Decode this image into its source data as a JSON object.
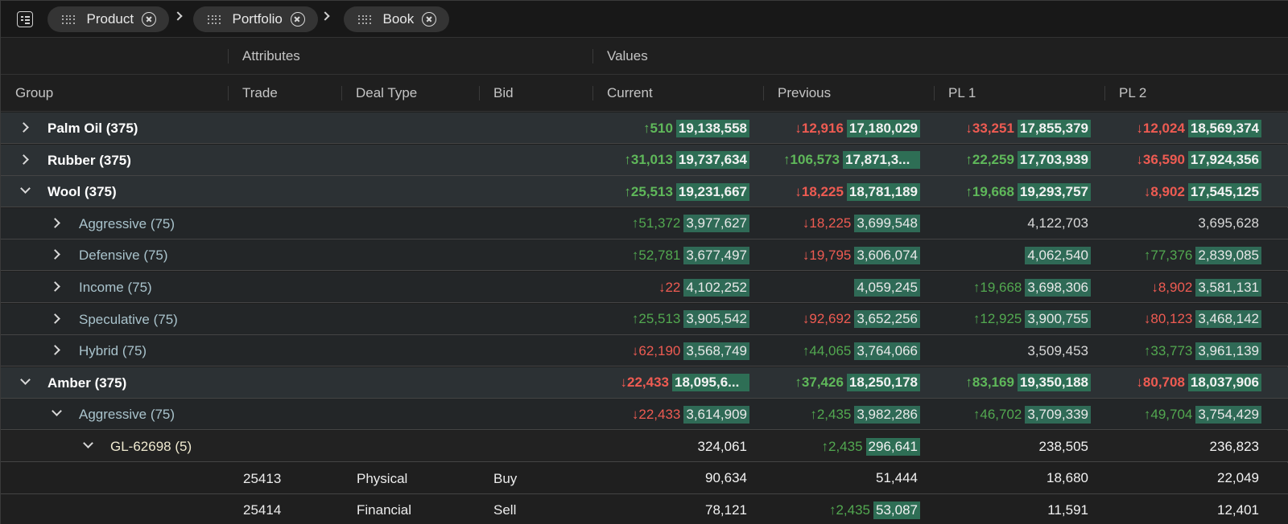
{
  "toolbar": {
    "menu_icon": "grid-menu-icon",
    "pills": [
      {
        "label": "Product"
      },
      {
        "label": "Portfolio"
      },
      {
        "label": "Book"
      }
    ]
  },
  "header": {
    "group_top": "",
    "attributes_label": "Attributes",
    "values_label": "Values",
    "columns": {
      "group": "Group",
      "trade": "Trade",
      "deal_type": "Deal Type",
      "bid": "Bid",
      "current": "Current",
      "previous": "Previous",
      "pl1": "PL 1",
      "pl2": "PL 2"
    }
  },
  "rows": [
    {
      "level": 0,
      "expanded": false,
      "label": "Palm Oil (375)",
      "current": {
        "dir": "up",
        "chg": "↑510",
        "val": "19,138,558",
        "hl": true
      },
      "previous": {
        "dir": "dn",
        "chg": "↓12,916",
        "val": "17,180,029",
        "hl": true
      },
      "pl1": {
        "dir": "dn",
        "chg": "↓33,251",
        "val": "17,855,379",
        "hl": true
      },
      "pl2": {
        "dir": "dn",
        "chg": "↓12,024",
        "val": "18,569,374",
        "hl": true
      }
    },
    {
      "level": 0,
      "expanded": false,
      "label": "Rubber (375)",
      "current": {
        "dir": "up",
        "chg": "↑31,013",
        "val": "19,737,634",
        "hl": true
      },
      "previous": {
        "dir": "up",
        "chg": "↑106,573",
        "val": "17,871,3...",
        "hl": true
      },
      "pl1": {
        "dir": "up",
        "chg": "↑22,259",
        "val": "17,703,939",
        "hl": true
      },
      "pl2": {
        "dir": "dn",
        "chg": "↓36,590",
        "val": "17,924,356",
        "hl": true
      }
    },
    {
      "level": 0,
      "expanded": true,
      "label": "Wool (375)",
      "current": {
        "dir": "up",
        "chg": "↑25,513",
        "val": "19,231,667",
        "hl": true
      },
      "previous": {
        "dir": "dn",
        "chg": "↓18,225",
        "val": "18,781,189",
        "hl": true
      },
      "pl1": {
        "dir": "up",
        "chg": "↑19,668",
        "val": "19,293,757",
        "hl": true
      },
      "pl2": {
        "dir": "dn",
        "chg": "↓8,902",
        "val": "17,545,125",
        "hl": true
      }
    },
    {
      "level": 1,
      "expanded": false,
      "label": "Aggressive (75)",
      "current": {
        "dir": "up",
        "chg": "↑51,372",
        "val": "3,977,627",
        "hl": true
      },
      "previous": {
        "dir": "dn",
        "chg": "↓18,225",
        "val": "3,699,548",
        "hl": true
      },
      "pl1": {
        "dir": "",
        "chg": "",
        "val": "4,122,703",
        "hl": false
      },
      "pl2": {
        "dir": "",
        "chg": "",
        "val": "3,695,628",
        "hl": false
      }
    },
    {
      "level": 1,
      "expanded": false,
      "label": "Defensive (75)",
      "current": {
        "dir": "up",
        "chg": "↑52,781",
        "val": "3,677,497",
        "hl": true
      },
      "previous": {
        "dir": "dn",
        "chg": "↓19,795",
        "val": "3,606,074",
        "hl": true
      },
      "pl1": {
        "dir": "",
        "chg": "",
        "val": "4,062,540",
        "hl": true
      },
      "pl2": {
        "dir": "up",
        "chg": "↑77,376",
        "val": "2,839,085",
        "hl": true
      }
    },
    {
      "level": 1,
      "expanded": false,
      "label": "Income (75)",
      "current": {
        "dir": "dn",
        "chg": "↓22",
        "val": "4,102,252",
        "hl": true
      },
      "previous": {
        "dir": "",
        "chg": "",
        "val": "4,059,245",
        "hl": true
      },
      "pl1": {
        "dir": "up",
        "chg": "↑19,668",
        "val": "3,698,306",
        "hl": true
      },
      "pl2": {
        "dir": "dn",
        "chg": "↓8,902",
        "val": "3,581,131",
        "hl": true
      }
    },
    {
      "level": 1,
      "expanded": false,
      "label": "Speculative (75)",
      "current": {
        "dir": "up",
        "chg": "↑25,513",
        "val": "3,905,542",
        "hl": true
      },
      "previous": {
        "dir": "dn",
        "chg": "↓92,692",
        "val": "3,652,256",
        "hl": true
      },
      "pl1": {
        "dir": "up",
        "chg": "↑12,925",
        "val": "3,900,755",
        "hl": true
      },
      "pl2": {
        "dir": "dn",
        "chg": "↓80,123",
        "val": "3,468,142",
        "hl": true
      }
    },
    {
      "level": 1,
      "expanded": false,
      "label": "Hybrid (75)",
      "current": {
        "dir": "dn",
        "chg": "↓62,190",
        "val": "3,568,749",
        "hl": true
      },
      "previous": {
        "dir": "up",
        "chg": "↑44,065",
        "val": "3,764,066",
        "hl": true
      },
      "pl1": {
        "dir": "",
        "chg": "",
        "val": "3,509,453",
        "hl": false
      },
      "pl2": {
        "dir": "up",
        "chg": "↑33,773",
        "val": "3,961,139",
        "hl": true
      }
    },
    {
      "level": 0,
      "expanded": true,
      "label": "Amber (375)",
      "current": {
        "dir": "dn",
        "chg": "↓22,433",
        "val": "18,095,6...",
        "hl": true
      },
      "previous": {
        "dir": "up",
        "chg": "↑37,426",
        "val": "18,250,178",
        "hl": true
      },
      "pl1": {
        "dir": "up",
        "chg": "↑83,169",
        "val": "19,350,188",
        "hl": true
      },
      "pl2": {
        "dir": "dn",
        "chg": "↓80,708",
        "val": "18,037,906",
        "hl": true
      }
    },
    {
      "level": 1,
      "expanded": true,
      "label": "Aggressive (75)",
      "current": {
        "dir": "dn",
        "chg": "↓22,433",
        "val": "3,614,909",
        "hl": true
      },
      "previous": {
        "dir": "up",
        "chg": "↑2,435",
        "val": "3,982,286",
        "hl": true
      },
      "pl1": {
        "dir": "up",
        "chg": "↑46,702",
        "val": "3,709,339",
        "hl": true
      },
      "pl2": {
        "dir": "up",
        "chg": "↑49,704",
        "val": "3,754,429",
        "hl": true
      }
    },
    {
      "level": 2,
      "expanded": true,
      "label": "GL-62698 (5)",
      "current": {
        "dir": "",
        "chg": "",
        "val": "324,061",
        "hl": false
      },
      "previous": {
        "dir": "up",
        "chg": "↑2,435",
        "val": "296,641",
        "hl": true
      },
      "pl1": {
        "dir": "",
        "chg": "",
        "val": "238,505",
        "hl": false
      },
      "pl2": {
        "dir": "",
        "chg": "",
        "val": "236,823",
        "hl": false
      }
    },
    {
      "level": 3,
      "label": "",
      "trade": "25413",
      "deal_type": "Physical",
      "bid": "Buy",
      "current": {
        "dir": "",
        "chg": "",
        "val": "90,634",
        "hl": false
      },
      "previous": {
        "dir": "",
        "chg": "",
        "val": "51,444",
        "hl": false
      },
      "pl1": {
        "dir": "",
        "chg": "",
        "val": "18,680",
        "hl": false
      },
      "pl2": {
        "dir": "",
        "chg": "",
        "val": "22,049",
        "hl": false
      }
    },
    {
      "level": 3,
      "label": "",
      "trade": "25414",
      "deal_type": "Financial",
      "bid": "Sell",
      "current": {
        "dir": "",
        "chg": "",
        "val": "78,121",
        "hl": false
      },
      "previous": {
        "dir": "up",
        "chg": "↑2,435",
        "val": "53,087",
        "hl": true
      },
      "pl1": {
        "dir": "",
        "chg": "",
        "val": "11,591",
        "hl": false
      },
      "pl2": {
        "dir": "",
        "chg": "",
        "val": "12,401",
        "hl": false
      }
    }
  ]
}
